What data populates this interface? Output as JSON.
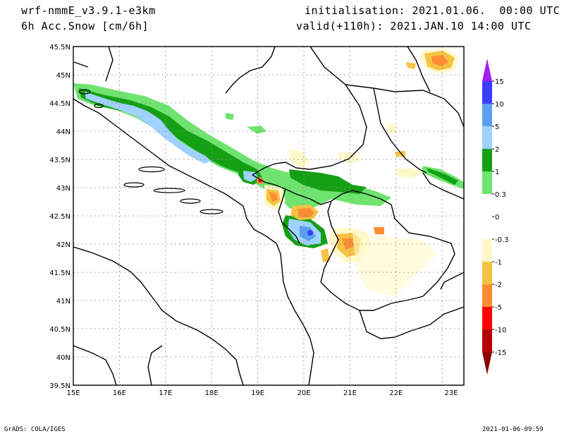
{
  "header": {
    "model": "wrf-nmmE_v3.9.1-e3km",
    "field": "6h Acc.Snow [cm/6h]",
    "init": "initialisation: 2021.01.06.  00:00 UTC",
    "valid": "valid(+110h): 2021.JAN.10 14:00 UTC"
  },
  "footer": {
    "credit": "GrADS: COLA/IGES",
    "timestamp": "2021-01-06-09:59"
  },
  "axes": {
    "lon_labels": [
      "15E",
      "16E",
      "17E",
      "18E",
      "19E",
      "20E",
      "21E",
      "22E",
      "23E"
    ],
    "lat_labels": [
      "45.5N",
      "45N",
      "44.5N",
      "44N",
      "43.5N",
      "43N",
      "42.5N",
      "42N",
      "41.5N",
      "41N",
      "40.5N",
      "40N",
      "39.5N"
    ]
  },
  "colorbar": {
    "levels": [
      {
        "label": "15",
        "color": "#a020f0"
      },
      {
        "label": "10",
        "color": "#3c3cff"
      },
      {
        "label": "5",
        "color": "#5aa0f0"
      },
      {
        "label": "2",
        "color": "#a0d2ff"
      },
      {
        "label": "1",
        "color": "#14a014"
      },
      {
        "label": "0.3",
        "color": "#6fe36f"
      },
      {
        "label": "0",
        "color": "#ffffff"
      },
      {
        "label": "-0.3",
        "color": "#ffffff"
      },
      {
        "label": "-1",
        "color": "#fff8c8"
      },
      {
        "label": "-2",
        "color": "#f5c242"
      },
      {
        "label": "-5",
        "color": "#ff8c32"
      },
      {
        "label": "-10",
        "color": "#ff0000"
      },
      {
        "label": "-15",
        "color": "#b40000"
      }
    ],
    "bottom_color": "#8c0000"
  },
  "colors": {
    "green_light": "#6fe36f",
    "green_dark": "#14a014",
    "blue_light": "#a0d2ff",
    "blue_mid": "#5aa0f0",
    "blue_dark": "#3c3cff",
    "yellow_pale": "#fff8c8",
    "yellow": "#f5c242",
    "orange": "#ff8c32",
    "red": "#ff0000"
  }
}
